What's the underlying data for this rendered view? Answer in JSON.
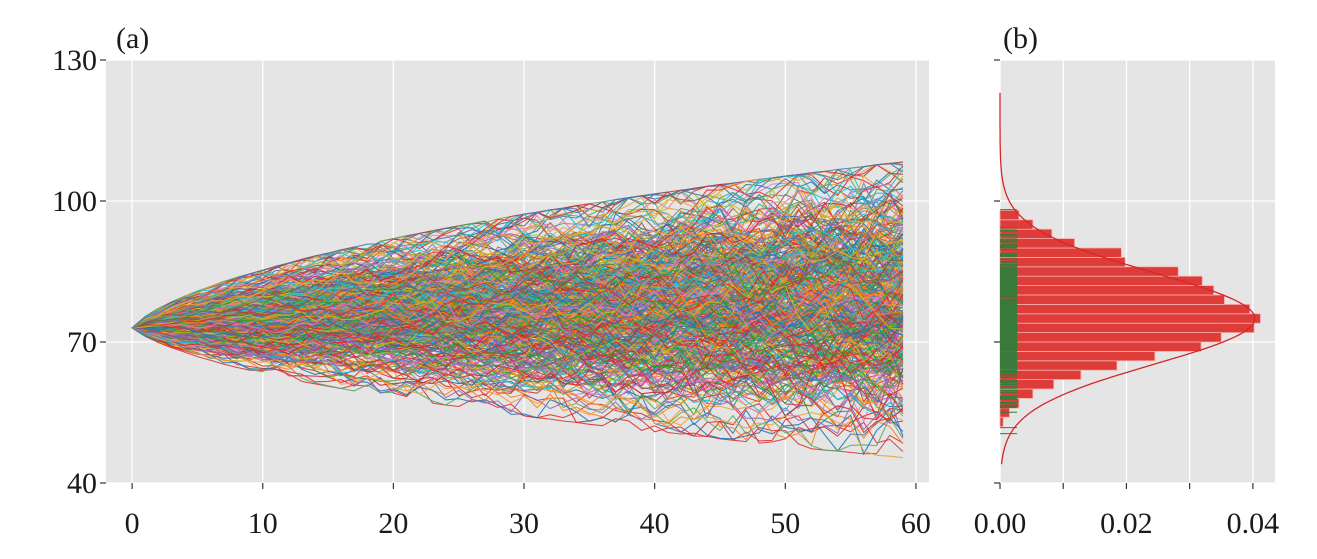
{
  "chart_data": [
    {
      "type": "line",
      "panel_label": "(a)",
      "title": "",
      "xlabel": "",
      "ylabel": "",
      "xlim": [
        -2,
        61
      ],
      "ylim": [
        40,
        130
      ],
      "x_ticks": [
        0,
        10,
        20,
        30,
        40,
        50,
        60
      ],
      "x_tick_labels": [
        "0",
        "10",
        "20",
        "30",
        "40",
        "50",
        "60"
      ],
      "y_ticks": [
        40,
        70,
        100,
        130
      ],
      "y_tick_labels": [
        "40",
        "70",
        "100",
        "130"
      ],
      "grid": true,
      "background": "#e5e5e5",
      "x": [
        0,
        1,
        2,
        3,
        4,
        5,
        6,
        7,
        8,
        9,
        10,
        11,
        12,
        13,
        14,
        15,
        16,
        17,
        18,
        19,
        20,
        21,
        22,
        23,
        24,
        25,
        26,
        27,
        28,
        29,
        30,
        31,
        32,
        33,
        34,
        35,
        36,
        37,
        38,
        39,
        40,
        41,
        42,
        43,
        44,
        45,
        46,
        47,
        48,
        49,
        50,
        51,
        52,
        53,
        54,
        55,
        56,
        57,
        58,
        59
      ],
      "start_value": 73,
      "envelope_min": [
        73,
        71.2,
        69.9,
        68.8,
        67.8,
        66.9,
        66.1,
        65.3,
        64.6,
        64,
        63.3,
        62.7,
        62.2,
        61.6,
        61.1,
        60.6,
        60.1,
        59.6,
        59.1,
        58.7,
        58.2,
        57.8,
        57.4,
        57,
        56.6,
        56.2,
        55.8,
        55.4,
        55,
        54.6,
        54.3,
        53.9,
        53.6,
        53.2,
        52.9,
        52.5,
        52.2,
        51.9,
        51.5,
        51.2,
        50.9,
        50.6,
        50.3,
        50,
        49.7,
        49.4,
        49.1,
        48.8,
        48.5,
        48.2,
        47.9,
        47.6,
        47.3,
        47,
        46.8,
        46.5,
        46.2,
        45.9,
        45.7,
        45.4
      ],
      "envelope_max": [
        73,
        75.4,
        77.1,
        78.5,
        79.7,
        80.8,
        81.8,
        82.8,
        83.7,
        84.5,
        85.3,
        86.1,
        86.8,
        87.6,
        88.3,
        88.9,
        89.6,
        90.2,
        90.8,
        91.4,
        92,
        92.6,
        93.1,
        93.7,
        94.2,
        94.7,
        95.2,
        95.7,
        96.2,
        96.7,
        97.2,
        97.6,
        98.1,
        98.5,
        99,
        99.4,
        99.8,
        100.3,
        100.7,
        101.1,
        101.5,
        101.9,
        102.3,
        102.7,
        103.1,
        103.5,
        103.8,
        104.2,
        104.6,
        104.9,
        105.3,
        105.6,
        106,
        106.3,
        106.7,
        107,
        107.3,
        107.7,
        108,
        108.3
      ],
      "series_colors": [
        "#1f77b4",
        "#ff7f0e",
        "#2ca02c",
        "#d62728",
        "#9467bd",
        "#8c564b",
        "#e377c2",
        "#7f7f7f",
        "#bcbd22",
        "#17becf",
        "#f0a030",
        "#e03030",
        "#4c72b0",
        "#55a868"
      ]
    },
    {
      "type": "bar",
      "orientation": "horizontal",
      "panel_label": "(b)",
      "title": "",
      "xlabel": "",
      "ylabel": "",
      "xlim": [
        0,
        0.0435
      ],
      "ylim": [
        40,
        130
      ],
      "x_ticks": [
        0,
        0.01,
        0.02,
        0.03,
        0.04
      ],
      "x_tick_labels": [
        "0.00",
        "",
        "0.02",
        "",
        "0.04"
      ],
      "y_ticks": [
        40,
        70,
        100,
        130
      ],
      "y_tick_labels": [
        "",
        "",
        "",
        ""
      ],
      "grid": true,
      "background": "#e5e5e5",
      "bin_edges": [
        52,
        54,
        56,
        58,
        60,
        62,
        64,
        66,
        68,
        70,
        72,
        74,
        76,
        78,
        80,
        82,
        84,
        86,
        88,
        90,
        92,
        94,
        96,
        98
      ],
      "density": [
        0.0005,
        0.0015,
        0.003,
        0.0052,
        0.0085,
        0.0128,
        0.0185,
        0.0245,
        0.0318,
        0.035,
        0.0402,
        0.0412,
        0.0395,
        0.0355,
        0.0338,
        0.032,
        0.0282,
        0.0198,
        0.0192,
        0.0118,
        0.0082,
        0.0052,
        0.003
      ],
      "hist_color": "#dd3c39",
      "kde_color": "#d62728",
      "rug_color": "#3a7a3a",
      "rug_length": 0.0027
    }
  ]
}
